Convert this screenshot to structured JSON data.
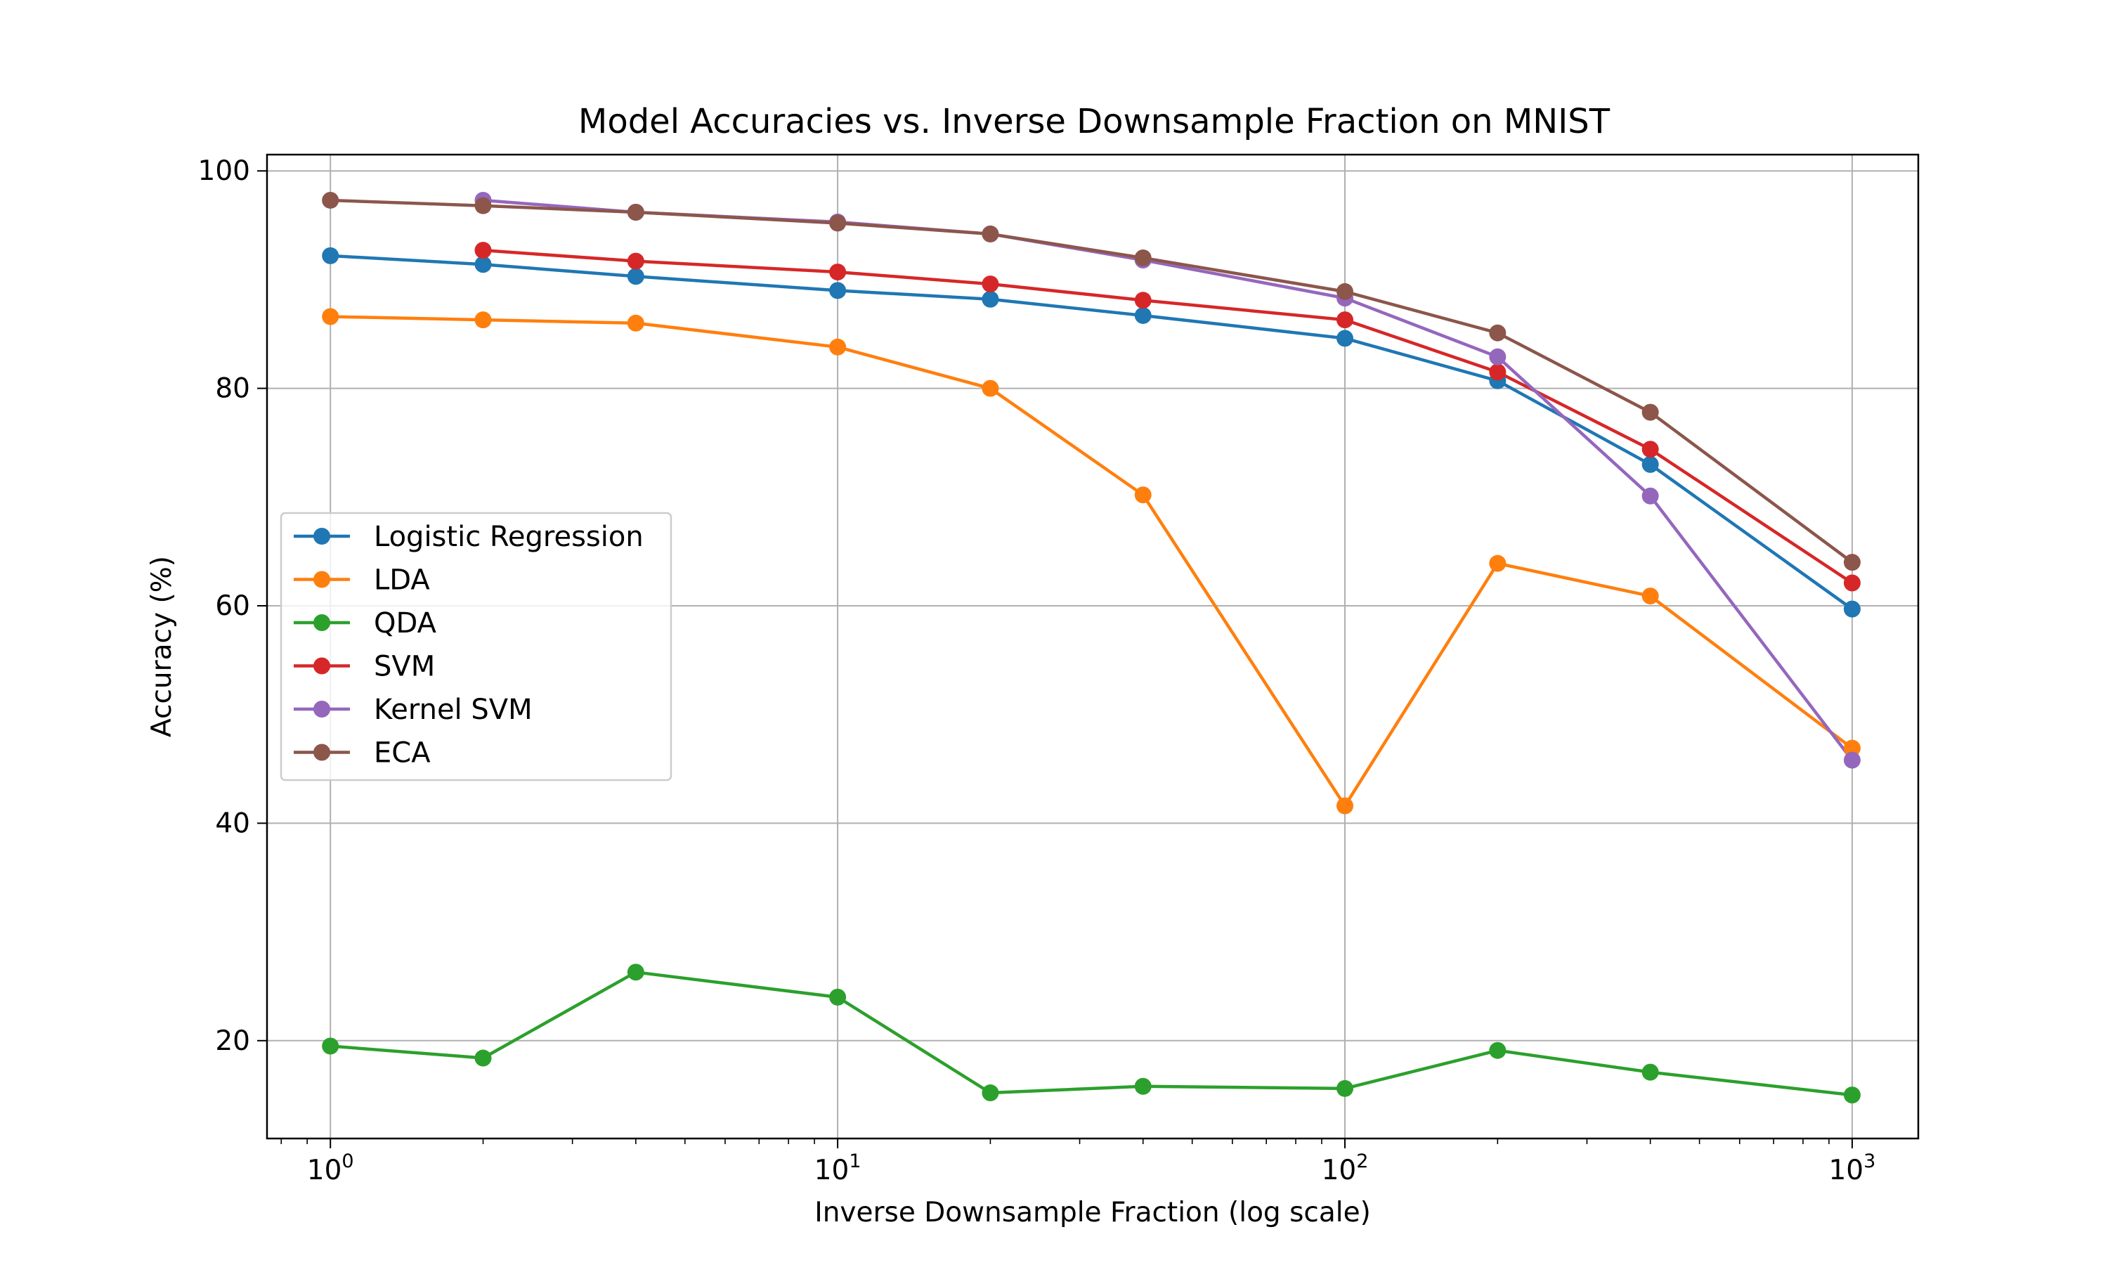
{
  "chart_data": {
    "type": "line",
    "title": "Model Accuracies vs. Inverse Downsample Fraction on MNIST",
    "xlabel": "Inverse Downsample Fraction (log scale)",
    "ylabel": "Accuracy (%)",
    "xscale": "log",
    "xlim": [
      0.75,
      1350
    ],
    "ylim": [
      11,
      101.5
    ],
    "grid": true,
    "legend_position": "center-left",
    "x_ticks": [
      {
        "value": 1,
        "base": "10",
        "exp": "0"
      },
      {
        "value": 10,
        "base": "10",
        "exp": "1"
      },
      {
        "value": 100,
        "base": "10",
        "exp": "2"
      },
      {
        "value": 1000,
        "base": "10",
        "exp": "3"
      }
    ],
    "y_ticks": [
      20,
      40,
      60,
      80,
      100
    ],
    "series": [
      {
        "name": "Logistic Regression",
        "color": "#1f77b4",
        "x": [
          1,
          2,
          4,
          10,
          20,
          40,
          100,
          200,
          400,
          1000
        ],
        "y": [
          92.2,
          91.4,
          90.3,
          89.0,
          88.2,
          86.7,
          84.6,
          80.7,
          73.0,
          59.7
        ]
      },
      {
        "name": "LDA",
        "color": "#ff7f0e",
        "x": [
          1,
          2,
          4,
          10,
          20,
          40,
          100,
          200,
          400,
          1000
        ],
        "y": [
          86.6,
          86.3,
          86.0,
          83.8,
          80.0,
          70.2,
          41.6,
          63.9,
          60.9,
          46.9
        ]
      },
      {
        "name": "QDA",
        "color": "#2ca02c",
        "x": [
          1,
          2,
          4,
          10,
          20,
          40,
          100,
          200,
          400,
          1000
        ],
        "y": [
          19.5,
          18.4,
          26.3,
          24.0,
          15.2,
          15.8,
          15.6,
          19.1,
          17.1,
          15.0
        ]
      },
      {
        "name": "SVM",
        "color": "#d62728",
        "x": [
          2,
          4,
          10,
          20,
          40,
          100,
          200,
          400,
          1000
        ],
        "y": [
          92.7,
          91.7,
          90.7,
          89.6,
          88.1,
          86.3,
          81.5,
          74.4,
          62.1
        ]
      },
      {
        "name": "Kernel SVM",
        "color": "#9467bd",
        "x": [
          2,
          4,
          10,
          20,
          40,
          100,
          200,
          400,
          1000
        ],
        "y": [
          97.3,
          96.2,
          95.3,
          94.2,
          91.8,
          88.3,
          82.9,
          70.1,
          45.8
        ]
      },
      {
        "name": "ECA",
        "color": "#8c564b",
        "x": [
          1,
          2,
          4,
          10,
          20,
          40,
          100,
          200,
          400,
          1000
        ],
        "y": [
          97.3,
          96.8,
          96.2,
          95.2,
          94.2,
          92.0,
          88.9,
          85.1,
          77.8,
          64.0
        ]
      }
    ]
  }
}
